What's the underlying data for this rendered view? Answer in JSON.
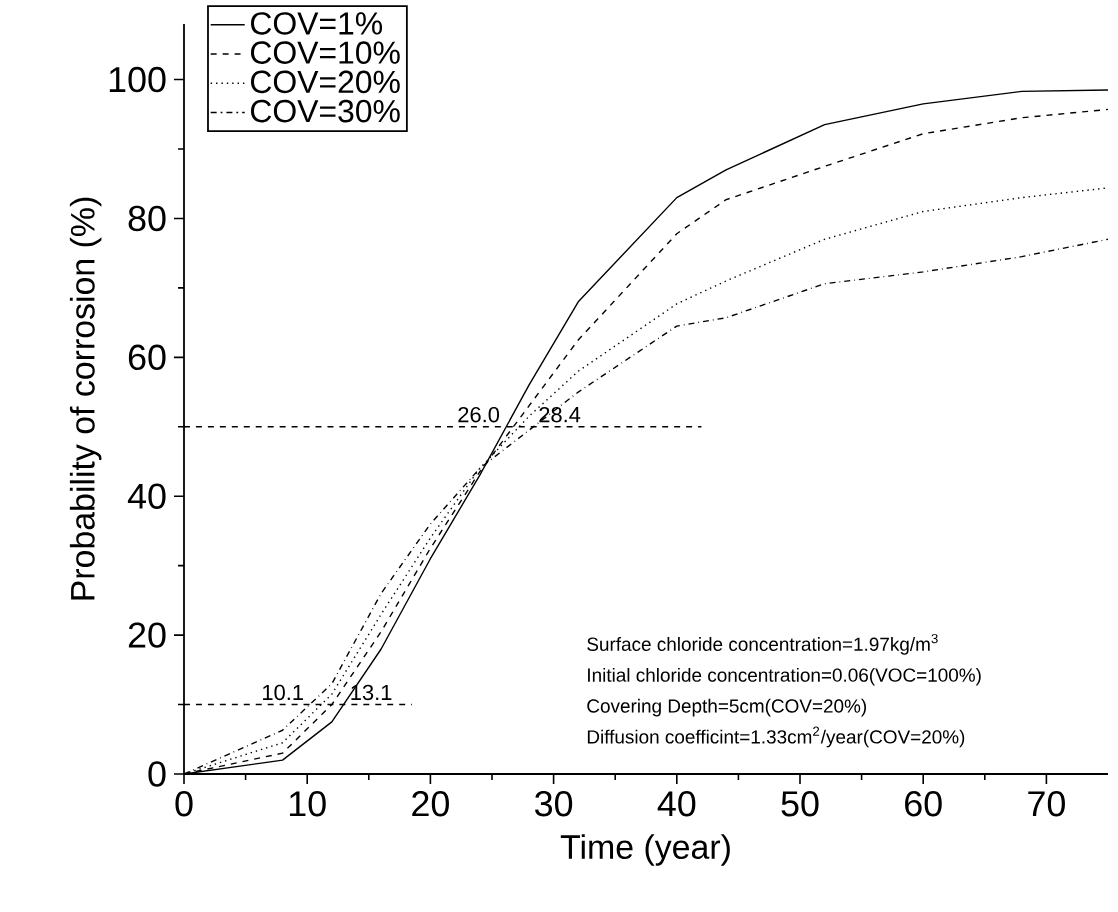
{
  "chart_data": {
    "type": "line",
    "xlabel": "Time (year)",
    "ylabel": "Probability of corrosion (%)",
    "x": [
      0,
      8,
      12,
      16,
      20,
      24,
      28,
      32,
      40,
      44,
      52,
      60,
      68,
      75
    ],
    "series": [
      {
        "name": "COV=1%",
        "color": "#000000",
        "line_style": "solid",
        "values": [
          0,
          2,
          7.5,
          18,
          31,
          43,
          56,
          68,
          83,
          87,
          93.5,
          96.5,
          98.3,
          98.5
        ]
      },
      {
        "name": "COV=10%",
        "color": "#000000",
        "line_style": "dashed",
        "values": [
          0,
          3,
          10,
          20.5,
          32.5,
          43.5,
          53,
          62.5,
          77.8,
          82.7,
          87.5,
          92.2,
          94.5,
          95.7
        ]
      },
      {
        "name": "COV=20%",
        "color": "#000000",
        "line_style": "dotted",
        "values": [
          0,
          4.5,
          11.5,
          23,
          34,
          44,
          51.5,
          58,
          67.7,
          71,
          77,
          81,
          83,
          84.4
        ]
      },
      {
        "name": "COV=30%",
        "color": "#000000",
        "line_style": "dashdotted",
        "values": [
          0,
          6.3,
          13,
          26,
          36,
          44,
          49.5,
          55,
          64.5,
          65.7,
          70.6,
          72.3,
          74.5,
          77
        ]
      },
      {
        "type": "line",
        "color": "#000000",
        "line_style": "dashed",
        "x": [
          0,
          42
        ],
        "values": [
          50,
          50
        ]
      },
      {
        "type": "line",
        "color": "#000000",
        "line_style": "dashed",
        "x": [
          0,
          18.5
        ],
        "values": [
          10,
          10
        ]
      }
    ],
    "xlim": [
      0,
      75
    ],
    "ylim": [
      0,
      108
    ],
    "xticks": [
      0,
      10,
      20,
      30,
      40,
      50,
      60,
      70
    ],
    "yticks": [
      0,
      20,
      40,
      60,
      80,
      100
    ],
    "legend": "top left",
    "annotations": [
      {
        "text": "26.0",
        "x": 26.0,
        "y": 50
      },
      {
        "text": "28.4",
        "x": 28.4,
        "y": 50
      },
      {
        "text": "10.1",
        "x": 10.1,
        "y": 10
      },
      {
        "text": "13.1",
        "x": 13.1,
        "y": 10
      },
      "Surface chloride concentration=1.97kg/m$^{3}$",
      "Initial chloride concentration=0.06(VOC=100%)",
      "Covering Depth=5cm(COV=20%)",
      "Diffusion coefficint=1.33cm$^{2}$/year(COV=20%)"
    ]
  }
}
